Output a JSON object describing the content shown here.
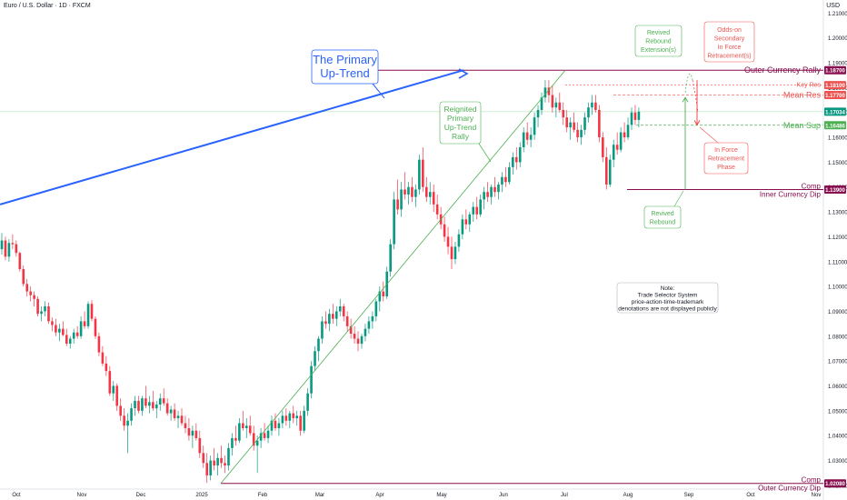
{
  "chart_data": {
    "type": "candlestick",
    "title": "Euro / U.S. Dollar · 1D · FXCM",
    "currency": "USD",
    "y_ticks": [
      "1.21000",
      "1.20000",
      "1.19000",
      "1.18000",
      "1.17000",
      "1.16000",
      "1.15000",
      "1.14000",
      "1.13000",
      "1.12000",
      "1.11000",
      "1.10000",
      "1.09000",
      "1.08000",
      "1.07000",
      "1.06000",
      "1.05000",
      "1.04000",
      "1.03000",
      "1.02000"
    ],
    "ylim": [
      1.0185,
      1.2145
    ],
    "x_ticks": [
      "Oct",
      "Nov",
      "Dec",
      "2025",
      "Feb",
      "Mar",
      "Apr",
      "May",
      "Jun",
      "Jul",
      "Aug",
      "Sep",
      "Oct",
      "Nov"
    ],
    "grid": false,
    "price_tags": [
      {
        "value": "1.18700",
        "color": "#880e4f"
      },
      {
        "value": "1.18100",
        "color": "#ef5350"
      },
      {
        "value": "1.17700",
        "color": "#ef5350"
      },
      {
        "value": "1.17034",
        "color": "#089981"
      },
      {
        "value": "1.16486",
        "color": "#4caf50"
      },
      {
        "value": "1.13900",
        "color": "#880e4f"
      },
      {
        "value": "1.02080",
        "color": "#880e4f"
      }
    ],
    "levels": [
      {
        "label": "Outer Currency Rally",
        "value": 1.187,
        "color": "#880e4f"
      },
      {
        "label": "Key Res",
        "value": 1.181,
        "color": "#ef5350"
      },
      {
        "label": "Mean Res",
        "value": 1.177,
        "color": "#ef5350"
      },
      {
        "label": "Mean Sup",
        "value": 1.16486,
        "color": "#4caf50"
      },
      {
        "label": "Comp Inner Currency Dip",
        "value": 1.139,
        "color": "#880e4f"
      },
      {
        "label": "Comp Outer Currency Dip",
        "value": 1.0208,
        "color": "#880e4f"
      }
    ],
    "annotations": [
      {
        "text": [
          "The Primary",
          "Up-Trend"
        ],
        "color": "#2962ff"
      },
      {
        "text": [
          "Reignited",
          "Primary",
          "Up-Trend",
          "Rally"
        ],
        "color": "#4caf50"
      },
      {
        "text": [
          "Revived",
          "Rebound",
          "Extension(s)"
        ],
        "color": "#4caf50"
      },
      {
        "text": [
          "Odds-on",
          "Secondary",
          "In Force",
          "Retracement(s)"
        ],
        "color": "#ef5350"
      },
      {
        "text": [
          "In Force",
          "Retracement",
          "Phase"
        ],
        "color": "#ef5350"
      },
      {
        "text": [
          "Revived",
          "Rebound"
        ],
        "color": "#4caf50"
      },
      {
        "text": [
          "Note:",
          "Trade Selector System",
          "price-action-time-trademark",
          "denotations are not displayed publicly"
        ],
        "color": "#131722"
      }
    ],
    "candles": [
      [
        1.115,
        1.1215,
        1.1128,
        1.1185
      ],
      [
        1.1185,
        1.12,
        1.1105,
        1.112
      ],
      [
        1.112,
        1.119,
        1.11,
        1.1175
      ],
      [
        1.1175,
        1.121,
        1.115,
        1.117
      ],
      [
        1.117,
        1.1185,
        1.112,
        1.1135
      ],
      [
        1.1135,
        1.114,
        1.106,
        1.107
      ],
      [
        1.107,
        1.1085,
        1.1,
        1.101
      ],
      [
        1.101,
        1.103,
        1.096,
        1.098
      ],
      [
        1.098,
        1.1,
        1.094,
        1.0965
      ],
      [
        1.0965,
        1.098,
        1.092,
        1.095
      ],
      [
        1.095,
        1.096,
        1.088,
        1.089
      ],
      [
        1.089,
        1.092,
        1.086,
        1.09
      ],
      [
        1.09,
        1.094,
        1.088,
        1.092
      ],
      [
        1.092,
        1.0935,
        1.085,
        1.086
      ],
      [
        1.086,
        1.0875,
        1.082,
        1.0845
      ],
      [
        1.0845,
        1.087,
        1.08,
        1.0815
      ],
      [
        1.0815,
        1.085,
        1.078,
        1.083
      ],
      [
        1.083,
        1.086,
        1.08,
        1.0805
      ],
      [
        1.0805,
        1.083,
        1.076,
        1.077
      ],
      [
        1.077,
        1.08,
        1.075,
        1.079
      ],
      [
        1.079,
        1.083,
        1.077,
        1.0815
      ],
      [
        1.0815,
        1.084,
        1.079,
        1.08
      ],
      [
        1.08,
        1.088,
        1.079,
        1.086
      ],
      [
        1.086,
        1.09,
        1.083,
        1.084
      ],
      [
        1.084,
        1.094,
        1.083,
        1.093
      ],
      [
        1.093,
        1.0945,
        1.086,
        1.087
      ],
      [
        1.087,
        1.088,
        1.079,
        1.08
      ],
      [
        1.08,
        1.0815,
        1.072,
        1.0735
      ],
      [
        1.0735,
        1.076,
        1.068,
        1.069
      ],
      [
        1.069,
        1.072,
        1.064,
        1.066
      ],
      [
        1.066,
        1.068,
        1.056,
        1.057
      ],
      [
        1.057,
        1.062,
        1.054,
        1.06
      ],
      [
        1.06,
        1.061,
        1.05,
        1.052
      ],
      [
        1.052,
        1.055,
        1.046,
        1.048
      ],
      [
        1.048,
        1.051,
        1.042,
        1.044
      ],
      [
        1.044,
        1.049,
        1.033,
        1.046
      ],
      [
        1.046,
        1.053,
        1.044,
        1.051
      ],
      [
        1.051,
        1.056,
        1.048,
        1.054
      ],
      [
        1.054,
        1.056,
        1.049,
        1.05
      ],
      [
        1.05,
        1.056,
        1.048,
        1.055
      ],
      [
        1.055,
        1.06,
        1.051,
        1.052
      ],
      [
        1.052,
        1.056,
        1.049,
        1.0535
      ],
      [
        1.0535,
        1.058,
        1.05,
        1.051
      ],
      [
        1.051,
        1.054,
        1.047,
        1.0525
      ],
      [
        1.0525,
        1.057,
        1.05,
        1.055
      ],
      [
        1.055,
        1.059,
        1.052,
        1.053
      ],
      [
        1.053,
        1.055,
        1.048,
        1.049
      ],
      [
        1.049,
        1.052,
        1.046,
        1.0505
      ],
      [
        1.0505,
        1.053,
        1.046,
        1.047
      ],
      [
        1.047,
        1.05,
        1.043,
        1.048
      ],
      [
        1.048,
        1.051,
        1.044,
        1.045
      ],
      [
        1.045,
        1.048,
        1.041,
        1.043
      ],
      [
        1.043,
        1.047,
        1.038,
        1.04
      ],
      [
        1.04,
        1.044,
        1.035,
        1.042
      ],
      [
        1.042,
        1.045,
        1.038,
        1.039
      ],
      [
        1.039,
        1.042,
        1.031,
        1.033
      ],
      [
        1.033,
        1.036,
        1.027,
        1.029
      ],
      [
        1.029,
        1.033,
        1.021,
        1.024
      ],
      [
        1.024,
        1.032,
        1.022,
        1.03
      ],
      [
        1.03,
        1.035,
        1.026,
        1.028
      ],
      [
        1.028,
        1.033,
        1.024,
        1.031
      ],
      [
        1.031,
        1.036,
        1.027,
        1.029
      ],
      [
        1.029,
        1.032,
        1.025,
        1.028
      ],
      [
        1.028,
        1.037,
        1.026,
        1.035
      ],
      [
        1.035,
        1.041,
        1.032,
        1.039
      ],
      [
        1.039,
        1.044,
        1.036,
        1.038
      ],
      [
        1.038,
        1.047,
        1.037,
        1.045
      ],
      [
        1.045,
        1.05,
        1.042,
        1.043
      ],
      [
        1.043,
        1.047,
        1.039,
        1.044
      ],
      [
        1.044,
        1.048,
        1.04,
        1.041
      ],
      [
        1.041,
        1.044,
        1.034,
        1.036
      ],
      [
        1.036,
        1.04,
        1.025,
        1.038
      ],
      [
        1.038,
        1.043,
        1.035,
        1.041
      ],
      [
        1.041,
        1.045,
        1.038,
        1.039
      ],
      [
        1.039,
        1.044,
        1.037,
        1.042
      ],
      [
        1.042,
        1.048,
        1.04,
        1.046
      ],
      [
        1.046,
        1.049,
        1.042,
        1.043
      ],
      [
        1.043,
        1.047,
        1.04,
        1.045
      ],
      [
        1.045,
        1.05,
        1.043,
        1.048
      ],
      [
        1.048,
        1.051,
        1.044,
        1.046
      ],
      [
        1.046,
        1.05,
        1.043,
        1.049
      ],
      [
        1.049,
        1.052,
        1.045,
        1.047
      ],
      [
        1.047,
        1.05,
        1.044,
        1.048
      ],
      [
        1.048,
        1.05,
        1.04,
        1.042
      ],
      [
        1.042,
        1.052,
        1.041,
        1.05
      ],
      [
        1.05,
        1.059,
        1.048,
        1.057
      ],
      [
        1.057,
        1.07,
        1.055,
        1.068
      ],
      [
        1.068,
        1.076,
        1.066,
        1.074
      ],
      [
        1.074,
        1.08,
        1.07,
        1.079
      ],
      [
        1.079,
        1.088,
        1.077,
        1.086
      ],
      [
        1.086,
        1.09,
        1.083,
        1.085
      ],
      [
        1.085,
        1.091,
        1.082,
        1.089
      ],
      [
        1.089,
        1.093,
        1.085,
        1.087
      ],
      [
        1.087,
        1.092,
        1.084,
        1.09
      ],
      [
        1.09,
        1.095,
        1.088,
        1.092
      ],
      [
        1.092,
        1.093,
        1.086,
        1.088
      ],
      [
        1.088,
        1.09,
        1.082,
        1.084
      ],
      [
        1.084,
        1.087,
        1.079,
        1.081
      ],
      [
        1.081,
        1.084,
        1.077,
        1.079
      ],
      [
        1.079,
        1.082,
        1.074,
        1.077
      ],
      [
        1.077,
        1.081,
        1.075,
        1.08
      ],
      [
        1.08,
        1.085,
        1.078,
        1.083
      ],
      [
        1.083,
        1.088,
        1.081,
        1.086
      ],
      [
        1.086,
        1.09,
        1.083,
        1.088
      ],
      [
        1.088,
        1.095,
        1.086,
        1.094
      ],
      [
        1.094,
        1.1,
        1.09,
        1.098
      ],
      [
        1.098,
        1.102,
        1.094,
        1.096
      ],
      [
        1.096,
        1.108,
        1.095,
        1.106
      ],
      [
        1.106,
        1.119,
        1.104,
        1.117
      ],
      [
        1.117,
        1.138,
        1.115,
        1.135
      ],
      [
        1.135,
        1.143,
        1.129,
        1.131
      ],
      [
        1.131,
        1.142,
        1.128,
        1.139
      ],
      [
        1.139,
        1.146,
        1.135,
        1.137
      ],
      [
        1.137,
        1.142,
        1.133,
        1.14
      ],
      [
        1.14,
        1.144,
        1.134,
        1.136
      ],
      [
        1.136,
        1.141,
        1.132,
        1.139
      ],
      [
        1.139,
        1.153,
        1.137,
        1.151
      ],
      [
        1.151,
        1.156,
        1.138,
        1.14
      ],
      [
        1.14,
        1.144,
        1.134,
        1.136
      ],
      [
        1.136,
        1.142,
        1.133,
        1.138
      ],
      [
        1.138,
        1.141,
        1.13,
        1.133
      ],
      [
        1.133,
        1.137,
        1.127,
        1.129
      ],
      [
        1.129,
        1.132,
        1.123,
        1.125
      ],
      [
        1.125,
        1.128,
        1.118,
        1.12
      ],
      [
        1.12,
        1.124,
        1.113,
        1.116
      ],
      [
        1.116,
        1.12,
        1.107,
        1.111
      ],
      [
        1.111,
        1.118,
        1.109,
        1.116
      ],
      [
        1.116,
        1.123,
        1.114,
        1.121
      ],
      [
        1.121,
        1.129,
        1.119,
        1.127
      ],
      [
        1.127,
        1.131,
        1.123,
        1.125
      ],
      [
        1.125,
        1.13,
        1.122,
        1.129
      ],
      [
        1.129,
        1.134,
        1.126,
        1.132
      ],
      [
        1.132,
        1.136,
        1.127,
        1.129
      ],
      [
        1.129,
        1.137,
        1.128,
        1.135
      ],
      [
        1.135,
        1.14,
        1.131,
        1.138
      ],
      [
        1.138,
        1.142,
        1.134,
        1.136
      ],
      [
        1.136,
        1.141,
        1.133,
        1.14
      ],
      [
        1.14,
        1.144,
        1.136,
        1.138
      ],
      [
        1.138,
        1.142,
        1.135,
        1.141
      ],
      [
        1.141,
        1.146,
        1.138,
        1.144
      ],
      [
        1.144,
        1.148,
        1.14,
        1.142
      ],
      [
        1.142,
        1.15,
        1.141,
        1.148
      ],
      [
        1.148,
        1.154,
        1.145,
        1.152
      ],
      [
        1.152,
        1.156,
        1.147,
        1.15
      ],
      [
        1.15,
        1.158,
        1.148,
        1.156
      ],
      [
        1.156,
        1.164,
        1.154,
        1.162
      ],
      [
        1.162,
        1.166,
        1.157,
        1.159
      ],
      [
        1.159,
        1.164,
        1.156,
        1.161
      ],
      [
        1.161,
        1.17,
        1.159,
        1.168
      ],
      [
        1.168,
        1.173,
        1.164,
        1.171
      ],
      [
        1.171,
        1.178,
        1.169,
        1.176
      ],
      [
        1.176,
        1.183,
        1.174,
        1.18
      ],
      [
        1.18,
        1.183,
        1.174,
        1.177
      ],
      [
        1.177,
        1.181,
        1.17,
        1.172
      ],
      [
        1.172,
        1.176,
        1.168,
        1.174
      ],
      [
        1.174,
        1.178,
        1.17,
        1.171
      ],
      [
        1.171,
        1.174,
        1.165,
        1.168
      ],
      [
        1.168,
        1.171,
        1.162,
        1.164
      ],
      [
        1.164,
        1.168,
        1.159,
        1.166
      ],
      [
        1.166,
        1.17,
        1.162,
        1.163
      ],
      [
        1.163,
        1.166,
        1.158,
        1.16
      ],
      [
        1.16,
        1.165,
        1.157,
        1.163
      ],
      [
        1.163,
        1.17,
        1.161,
        1.168
      ],
      [
        1.168,
        1.174,
        1.166,
        1.172
      ],
      [
        1.172,
        1.177,
        1.169,
        1.174
      ],
      [
        1.174,
        1.177,
        1.17,
        1.171
      ],
      [
        1.171,
        1.173,
        1.158,
        1.16
      ],
      [
        1.16,
        1.162,
        1.15,
        1.152
      ],
      [
        1.152,
        1.156,
        1.139,
        1.141
      ],
      [
        1.141,
        1.153,
        1.14,
        1.151
      ],
      [
        1.151,
        1.159,
        1.148,
        1.157
      ],
      [
        1.157,
        1.162,
        1.153,
        1.155
      ],
      [
        1.155,
        1.164,
        1.154,
        1.162
      ],
      [
        1.162,
        1.166,
        1.158,
        1.16
      ],
      [
        1.16,
        1.168,
        1.159,
        1.165
      ],
      [
        1.165,
        1.172,
        1.163,
        1.17
      ],
      [
        1.17,
        1.173,
        1.165,
        1.167
      ],
      [
        1.167,
        1.172,
        1.164,
        1.1703
      ]
    ]
  }
}
